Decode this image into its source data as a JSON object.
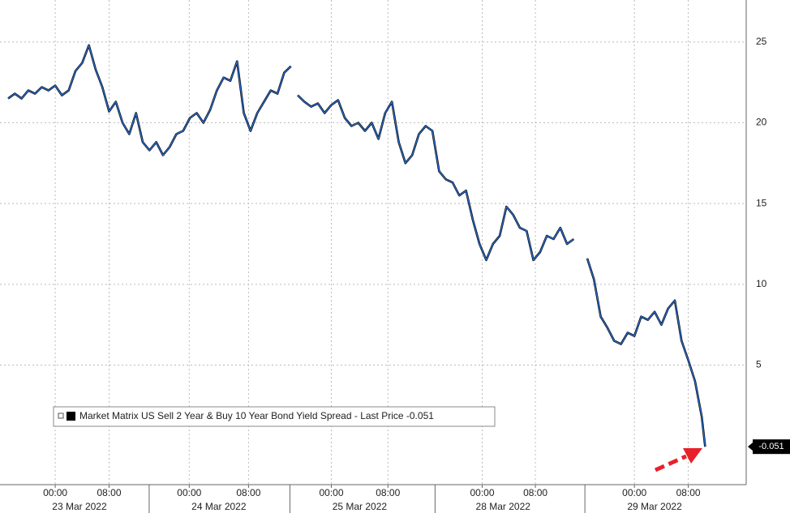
{
  "chart_data": {
    "type": "line",
    "x": [
      0,
      1,
      2,
      3,
      4,
      5,
      6,
      7,
      8,
      9,
      10,
      11,
      12,
      13,
      14,
      15,
      16,
      17,
      18,
      19,
      20,
      21,
      22,
      23,
      24,
      25,
      26,
      27,
      28,
      29,
      30,
      31,
      32,
      33,
      34,
      35,
      36,
      37,
      38,
      39,
      40,
      41,
      42,
      42.5,
      43,
      44,
      45,
      46,
      47,
      48,
      49,
      50,
      51,
      52,
      53,
      54,
      55,
      56,
      57,
      58,
      59,
      60,
      61,
      62,
      63,
      64,
      65,
      66,
      67,
      68,
      69,
      70,
      71,
      72,
      73,
      74,
      75,
      76,
      77,
      78,
      79,
      80,
      81,
      82,
      83,
      84,
      85,
      86,
      87,
      88,
      89,
      90,
      91,
      92,
      93,
      94,
      95,
      96,
      97,
      98,
      99,
      100,
      101,
      102,
      103,
      103.5
    ],
    "series": [
      {
        "name": "Market Matrix US Sell 2 Year & Buy 10 Year Bond Yield Spread - Last Price -0.051",
        "color": "#2a6fd6",
        "values": [
          21.5,
          21.8,
          21.5,
          22.0,
          21.8,
          22.2,
          22.0,
          22.3,
          21.7,
          22.0,
          23.2,
          23.7,
          24.8,
          23.3,
          22.2,
          20.7,
          21.3,
          20.0,
          19.3,
          20.6,
          18.8,
          18.3,
          18.8,
          18.0,
          18.5,
          19.3,
          19.5,
          20.3,
          20.6,
          20.0,
          20.8,
          22.0,
          22.8,
          22.6,
          23.8,
          20.6,
          19.5,
          20.6,
          21.3,
          22.0,
          21.8,
          23.1,
          23.5,
          null,
          21.7,
          21.3,
          21.0,
          21.2,
          20.6,
          21.1,
          21.4,
          20.3,
          19.8,
          20.0,
          19.5,
          20.0,
          19.0,
          20.6,
          21.3,
          18.8,
          17.5,
          18.0,
          19.3,
          19.8,
          19.5,
          17.0,
          16.5,
          16.3,
          15.5,
          15.8,
          14.0,
          12.5,
          11.5,
          12.5,
          13.0,
          14.8,
          14.3,
          13.5,
          13.3,
          11.5,
          12.0,
          13.0,
          12.8,
          13.5,
          12.5,
          12.8,
          null,
          11.6,
          10.3,
          8.0,
          7.3,
          6.5,
          6.3,
          7.0,
          6.8,
          8.0,
          7.8,
          8.3,
          7.5,
          8.5,
          9.0,
          6.5,
          5.3,
          4.0,
          1.8,
          -0.051
        ]
      }
    ],
    "xlim": [
      -1.2,
      109.6
    ],
    "xticks": [
      {
        "value": 7,
        "label": "00:00"
      },
      {
        "value": 15,
        "label": "08:00"
      },
      {
        "value": 26.9,
        "label": "00:00"
      },
      {
        "value": 35.7,
        "label": "08:00"
      },
      {
        "value": 48,
        "label": "00:00"
      },
      {
        "value": 56.4,
        "label": "08:00"
      },
      {
        "value": 70.4,
        "label": "00:00"
      },
      {
        "value": 78.3,
        "label": "08:00"
      },
      {
        "value": 93,
        "label": "00:00"
      },
      {
        "value": 101,
        "label": "08:00"
      }
    ],
    "date_labels": [
      {
        "value": 10.6,
        "label": "23 Mar 2022"
      },
      {
        "value": 31.3,
        "label": "24 Mar 2022"
      },
      {
        "value": 52.2,
        "label": "25 Mar 2022"
      },
      {
        "value": 73.5,
        "label": "28 Mar 2022"
      },
      {
        "value": 96,
        "label": "29 Mar 2022"
      }
    ],
    "ylim": [
      -2.4,
      27.6
    ],
    "yticks": [
      5,
      10,
      15,
      20,
      25
    ],
    "grid": true
  }
}
